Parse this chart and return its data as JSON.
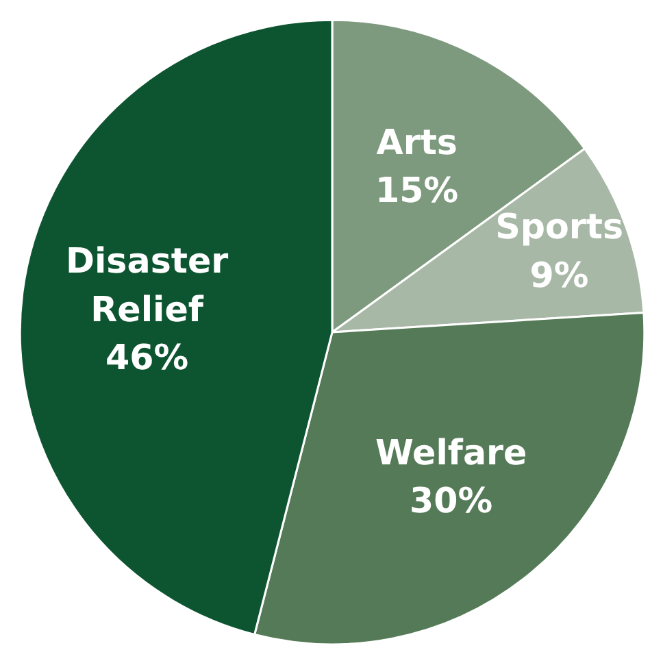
{
  "chart_data": {
    "type": "pie",
    "categories": [
      "Arts",
      "Sports",
      "Welfare",
      "Disaster Relief"
    ],
    "values": [
      15,
      9,
      30,
      46
    ],
    "value_labels": [
      "15%",
      "9%",
      "30%",
      "46%"
    ],
    "colors": [
      "#7d9a7e",
      "#a8b8a6",
      "#557a58",
      "#0d5530"
    ]
  }
}
